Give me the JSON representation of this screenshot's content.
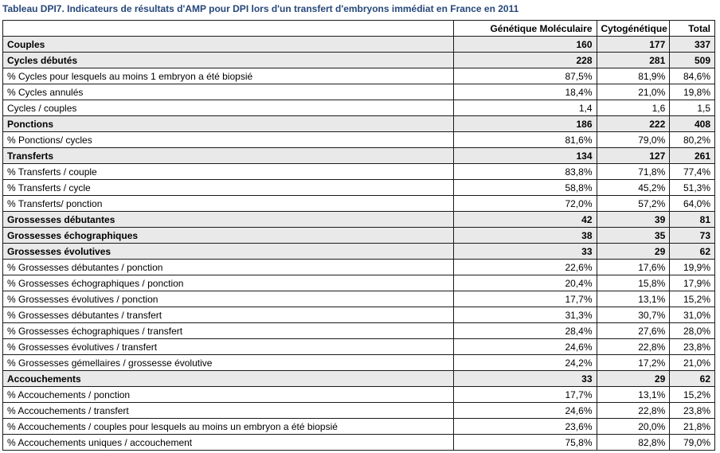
{
  "title": "Tableau DPI7. Indicateurs de résultats d'AMP pour DPI lors d'un transfert d'embryons immédiat en France en 2011",
  "table": {
    "headers": [
      "",
      "Génétique Moléculaire",
      "Cytogénétique",
      "Total"
    ],
    "rows": [
      {
        "bold": true,
        "cells": [
          "Couples",
          "160",
          "177",
          "337"
        ]
      },
      {
        "bold": true,
        "cells": [
          "Cycles débutés",
          "228",
          "281",
          "509"
        ]
      },
      {
        "bold": false,
        "cells": [
          "% Cycles pour lesquels au moins 1 embryon a été biopsié",
          "87,5%",
          "81,9%",
          "84,6%"
        ]
      },
      {
        "bold": false,
        "cells": [
          "% Cycles annulés",
          "18,4%",
          "21,0%",
          "19,8%"
        ]
      },
      {
        "bold": false,
        "cells": [
          "Cycles / couples",
          "1,4",
          "1,6",
          "1,5"
        ]
      },
      {
        "bold": true,
        "cells": [
          "Ponctions",
          "186",
          "222",
          "408"
        ]
      },
      {
        "bold": false,
        "cells": [
          "% Ponctions/ cycles",
          "81,6%",
          "79,0%",
          "80,2%"
        ]
      },
      {
        "bold": true,
        "cells": [
          "Transferts",
          "134",
          "127",
          "261"
        ]
      },
      {
        "bold": false,
        "cells": [
          "% Transferts / couple",
          "83,8%",
          "71,8%",
          "77,4%"
        ]
      },
      {
        "bold": false,
        "cells": [
          "% Transferts / cycle",
          "58,8%",
          "45,2%",
          "51,3%"
        ]
      },
      {
        "bold": false,
        "cells": [
          "% Transferts/ ponction",
          "72,0%",
          "57,2%",
          "64,0%"
        ]
      },
      {
        "bold": true,
        "cells": [
          "Grossesses débutantes",
          "42",
          "39",
          "81"
        ]
      },
      {
        "bold": true,
        "cells": [
          "Grossesses échographiques",
          "38",
          "35",
          "73"
        ]
      },
      {
        "bold": true,
        "cells": [
          "Grossesses évolutives",
          "33",
          "29",
          "62"
        ]
      },
      {
        "bold": false,
        "cells": [
          "% Grossesses débutantes / ponction",
          "22,6%",
          "17,6%",
          "19,9%"
        ]
      },
      {
        "bold": false,
        "cells": [
          "% Grossesses échographiques / ponction",
          "20,4%",
          "15,8%",
          "17,9%"
        ]
      },
      {
        "bold": false,
        "cells": [
          "% Grossesses évolutives / ponction",
          "17,7%",
          "13,1%",
          "15,2%"
        ]
      },
      {
        "bold": false,
        "cells": [
          "% Grossesses débutantes / transfert",
          "31,3%",
          "30,7%",
          "31,0%"
        ]
      },
      {
        "bold": false,
        "cells": [
          "% Grossesses échographiques / transfert",
          "28,4%",
          "27,6%",
          "28,0%"
        ]
      },
      {
        "bold": false,
        "cells": [
          "% Grossesses évolutives / transfert",
          "24,6%",
          "22,8%",
          "23,8%"
        ]
      },
      {
        "bold": false,
        "cells": [
          "% Grossesses gémellaires / grossesse évolutive",
          "24,2%",
          "17,2%",
          "21,0%"
        ]
      },
      {
        "bold": true,
        "cells": [
          "Accouchements",
          "33",
          "29",
          "62"
        ]
      },
      {
        "bold": false,
        "cells": [
          "% Accouchements / ponction",
          "17,7%",
          "13,1%",
          "15,2%"
        ]
      },
      {
        "bold": false,
        "cells": [
          "% Accouchements / transfert",
          "24,6%",
          "22,8%",
          "23,8%"
        ]
      },
      {
        "bold": false,
        "cells": [
          "% Accouchements / couples pour lesquels au moins un embryon a été biopsié",
          "23,6%",
          "20,0%",
          "21,8%"
        ]
      },
      {
        "bold": false,
        "cells": [
          "% Accouchements uniques / accouchement",
          "75,8%",
          "82,8%",
          "79,0%"
        ]
      }
    ]
  },
  "colors": {
    "title": "#26477a",
    "bold_row_background": "#e9e9ea",
    "border": "#1a1a1a"
  }
}
